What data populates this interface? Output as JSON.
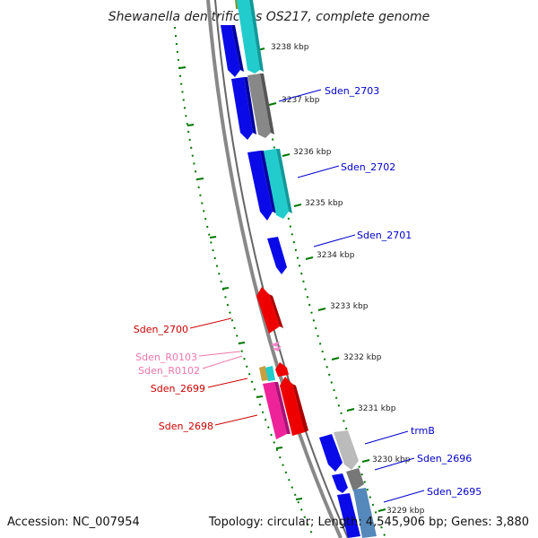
{
  "title": "Shewanella denitrificans OS217, complete genome",
  "footer": {
    "accession": "Accession: NC_007954",
    "topology": "Topology: circular; Length: 4,545,906 bp; Genes: 3,880"
  },
  "scale_labels": [
    "3238 kbp",
    "3237 kbp",
    "3236 kbp",
    "3235 kbp",
    "3234 kbp",
    "3233 kbp",
    "3232 kbp",
    "3231 kbp",
    "3230 kbp",
    "3229 kbp"
  ],
  "gene_labels": {
    "right": [
      "Sden_2703",
      "Sden_2702",
      "Sden_2701",
      "trmB",
      "Sden_2696",
      "Sden_2695"
    ],
    "left": [
      "Sden_2700",
      "Sden_R0103",
      "Sden_R0102",
      "Sden_2699",
      "Sden_2698"
    ]
  },
  "colors": {
    "forward_cds": "#0a0ae8",
    "reverse_cds": "#ee0000",
    "rna": "#ff66cc",
    "teal": "#22cccc",
    "gray": "#777777",
    "light_gray": "#bbbbbb",
    "steel_blue": "#5588bb",
    "olive": "#c8a040",
    "magenta": "#ee2299",
    "tick_green": "#007700",
    "label_blue": "#0000cc",
    "label_red": "#cc0000",
    "label_pink": "#ee77aa"
  }
}
